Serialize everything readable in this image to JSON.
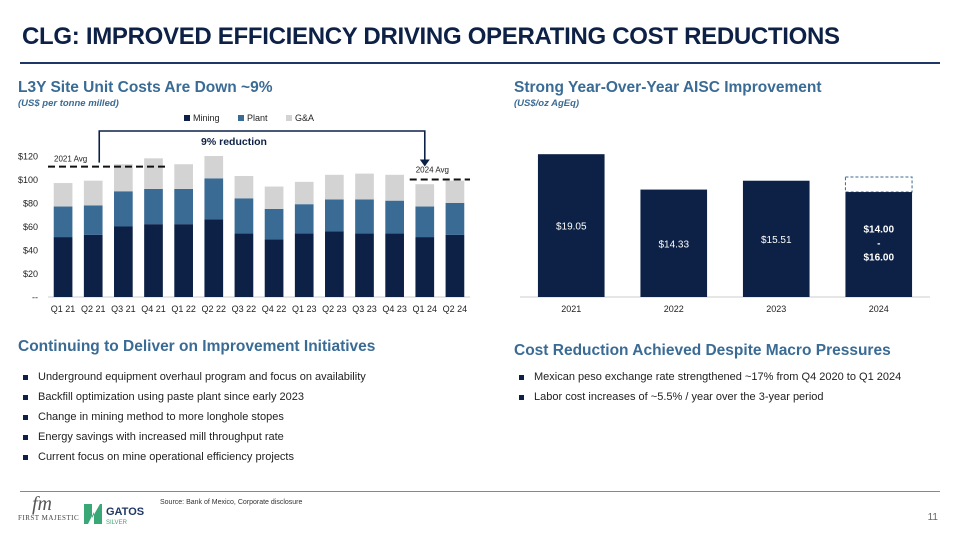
{
  "page": {
    "title": "CLG: IMPROVED EFFICIENCY DRIVING OPERATING COST REDUCTIONS",
    "page_number": "11",
    "source": "Source: Bank of Mexico, Corporate disclosure"
  },
  "left_chart": {
    "heading": "L3Y Site Unit Costs Are Down ~9%",
    "subheading": "(US$ per tonne milled)",
    "reduction_label": "9% reduction",
    "avg_2021_label": "2021 Avg",
    "avg_2024_label": "2024 Avg"
  },
  "right_chart": {
    "heading": "Strong Year-Over-Year AISC Improvement",
    "subheading": "(US$/oz AgEq)"
  },
  "improvement": {
    "heading": "Continuing to Deliver on Improvement Initiatives",
    "bullets": [
      "Underground equipment overhaul program and focus on availability",
      "Backfill optimization using paste plant since early 2023",
      "Change in mining method to more longhole stopes",
      "Energy savings with increased mill throughput rate",
      "Current focus on mine operational efficiency projects"
    ]
  },
  "macro": {
    "heading": "Cost Reduction Achieved Despite Macro Pressures",
    "bullets": [
      "Mexican peso exchange rate strengthened ~17% from Q4 2020 to Q1 2024",
      "Labor cost increases of ~5.5% / year over the 3-year period"
    ]
  },
  "logos": {
    "first_majestic": "FIRST MAJESTIC",
    "gatos_main": "GATOS",
    "gatos_sub": "SILVER"
  },
  "colors": {
    "navy": "#0d2146",
    "plant": "#3a6b95",
    "ga": "#d3d3d3",
    "heading": "#3a6b95"
  },
  "chart_data": [
    {
      "type": "bar",
      "stacked": true,
      "title": "L3Y Site Unit Costs Are Down ~9%",
      "ylabel": "US$ per tonne milled",
      "ylim": [
        0,
        120
      ],
      "yticks": [
        0,
        20,
        40,
        60,
        80,
        100,
        120
      ],
      "ytick_labels": [
        "--",
        "$20",
        "$40",
        "$60",
        "$80",
        "$100",
        "$120"
      ],
      "categories": [
        "Q1 21",
        "Q2 21",
        "Q3 21",
        "Q4 21",
        "Q1 22",
        "Q2 22",
        "Q3 22",
        "Q4 22",
        "Q1 23",
        "Q2 23",
        "Q3 23",
        "Q4 23",
        "Q1 24",
        "Q2 24"
      ],
      "legend": [
        "Mining",
        "Plant",
        "G&A"
      ],
      "legend_position": "top",
      "series": [
        {
          "name": "Mining",
          "values": [
            51,
            53,
            60,
            62,
            62,
            66,
            54,
            49,
            54,
            56,
            54,
            54,
            51,
            53
          ]
        },
        {
          "name": "Plant",
          "values": [
            26,
            25,
            30,
            30,
            30,
            35,
            30,
            26,
            25,
            27,
            29,
            28,
            26,
            27
          ]
        },
        {
          "name": "G&A",
          "values": [
            20,
            21,
            23,
            26,
            21,
            19,
            19,
            19,
            19,
            21,
            22,
            22,
            19,
            19
          ]
        }
      ],
      "reference_lines": [
        {
          "label": "2021 Avg",
          "value": 111
        },
        {
          "label": "2024 Avg",
          "value": 100
        }
      ],
      "annotation": "9% reduction"
    },
    {
      "type": "bar",
      "title": "Strong Year-Over-Year AISC Improvement",
      "ylabel": "US$/oz AgEq",
      "ylim": [
        0,
        20
      ],
      "categories": [
        "2021",
        "2022",
        "2023",
        "2024"
      ],
      "values": [
        19.05,
        14.33,
        15.51,
        14.0
      ],
      "range_top_2024": 16.0,
      "data_labels": [
        "$19.05",
        "$14.33",
        "$15.51",
        "$14.00 - $16.00"
      ],
      "data_labels_2024_lines": [
        "$14.00",
        "-",
        "$16.00"
      ]
    }
  ]
}
